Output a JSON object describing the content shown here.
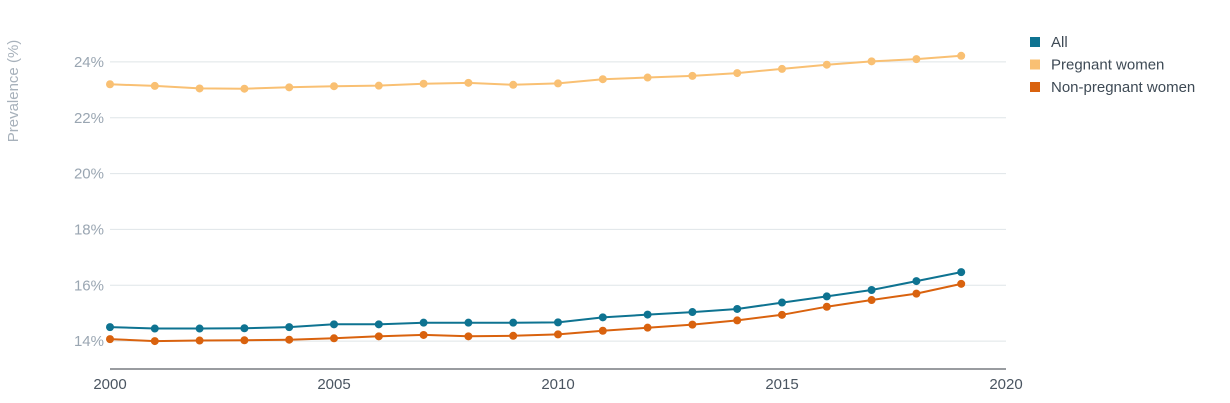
{
  "chart_data": {
    "type": "line",
    "title": "",
    "xlabel": "",
    "ylabel": "Prevalence (%)",
    "xlim": [
      2000,
      2020
    ],
    "ylim": [
      13,
      25
    ],
    "x_ticks": [
      2000,
      2005,
      2010,
      2015,
      2020
    ],
    "x_tick_labels": [
      "2000",
      "2005",
      "2010",
      "2015",
      "2020"
    ],
    "y_ticks": [
      14,
      16,
      18,
      20,
      22,
      24
    ],
    "y_tick_labels": [
      "14%",
      "16%",
      "18%",
      "20%",
      "22%",
      "24%"
    ],
    "grid": "horizontal",
    "legend_position": "top-right",
    "x": [
      2000,
      2001,
      2002,
      2003,
      2004,
      2005,
      2006,
      2007,
      2008,
      2009,
      2010,
      2011,
      2012,
      2013,
      2014,
      2015,
      2016,
      2017,
      2018,
      2019
    ],
    "series": [
      {
        "name": "All",
        "color": "#0e7391",
        "values": [
          14.5,
          14.45,
          14.45,
          14.46,
          14.5,
          14.6,
          14.6,
          14.66,
          14.66,
          14.66,
          14.67,
          14.85,
          14.95,
          15.04,
          15.15,
          15.38,
          15.6,
          15.83,
          16.15,
          16.47
        ]
      },
      {
        "name": "Pregnant women",
        "color": "#f9c073",
        "values": [
          23.2,
          23.14,
          23.05,
          23.04,
          23.09,
          23.13,
          23.15,
          23.22,
          23.25,
          23.18,
          23.23,
          23.38,
          23.44,
          23.5,
          23.6,
          23.75,
          23.9,
          24.02,
          24.1,
          24.22
        ]
      },
      {
        "name": "Non-pregnant women",
        "color": "#d9620e",
        "values": [
          14.07,
          14.0,
          14.02,
          14.03,
          14.05,
          14.1,
          14.17,
          14.22,
          14.17,
          14.19,
          14.24,
          14.37,
          14.48,
          14.59,
          14.74,
          14.94,
          15.23,
          15.47,
          15.7,
          16.05
        ]
      }
    ]
  }
}
